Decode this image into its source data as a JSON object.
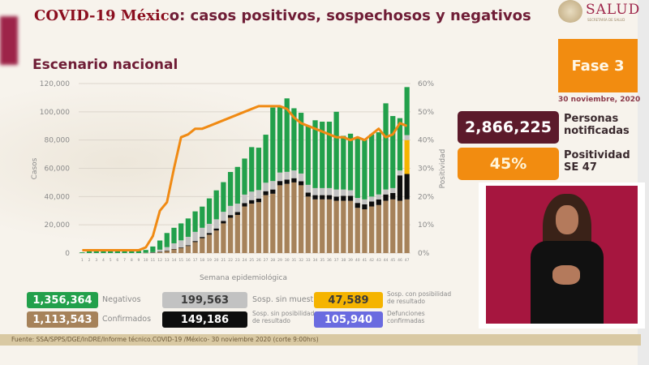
{
  "header": {
    "title_overlay": "COVID-19 Méxic",
    "title_rest": "o: casos positivos, sospechosos y negativos",
    "subtitle": "Escenario nacional",
    "logo_text": "SALUD",
    "logo_subtext": "SECRETARÍA DE SALUD"
  },
  "status": {
    "fase_label": "Fase 3",
    "date": "30 noviembre, 2020",
    "personas_value": "2,866,225",
    "personas_label_1": "Personas",
    "personas_label_2": "notificadas",
    "positividad_value": "45%",
    "positividad_label_1": "Positividad",
    "positividad_label_2": "SE 47"
  },
  "colors": {
    "negativos": "#1ea84b",
    "sin_muestra": "#c4c4c4",
    "con_posibilidad": "#f5b800",
    "confirmados": "#a88258",
    "sin_posibilidad": "#111111",
    "defunciones": "#6a6be0",
    "positividad_line": "#f08a13",
    "brand": "#6f1d36",
    "fase": "#f28c10",
    "personas_box": "#5c1a2b"
  },
  "legend": [
    {
      "value": "1,356,364",
      "label": "Negativos",
      "color": "#22a04b"
    },
    {
      "value": "199,563",
      "label": "Sosp. sin muestra",
      "color": "#c2c2c2"
    },
    {
      "value": "47,589",
      "label": "Sosp. con posibilidad de resultado",
      "color": "#f5b400"
    },
    {
      "value": "1,113,543",
      "label": "Confirmados",
      "color": "#a6825a"
    },
    {
      "value": "149,186",
      "label": "Sosp. sin posibilidad de resultado",
      "color": "#0d0d0d"
    },
    {
      "value": "105,940",
      "label": "Defunciones confirmadas",
      "color": "#6a6be0"
    }
  ],
  "footer": {
    "source": "Fuente: SSA/SPPS/DGE/InDRE/Informe técnico.COVID-19 /México- 30 noviembre 2020 (corte 9:00hrs)"
  },
  "chart_data": {
    "type": "bar",
    "title": "Escenario nacional",
    "xlabel": "Semana epidemiológica",
    "ylabel": "Casos",
    "y2label": "Positividad",
    "ylim": [
      0,
      120000
    ],
    "y2lim": [
      0,
      60
    ],
    "yticks": [
      "0",
      "20,000",
      "40,000",
      "60,000",
      "80,000",
      "100,000",
      "120,000"
    ],
    "y2ticks": [
      "0%",
      "10%",
      "20%",
      "30%",
      "40%",
      "50%",
      "60%"
    ],
    "grid": true,
    "stacked": true,
    "categories": [
      "1",
      "2",
      "3",
      "4",
      "5",
      "6",
      "7",
      "8",
      "9",
      "10",
      "11",
      "12",
      "13",
      "14",
      "15",
      "16",
      "17",
      "18",
      "19",
      "20",
      "21",
      "22",
      "23",
      "24",
      "25",
      "26",
      "27",
      "28",
      "29",
      "30",
      "31",
      "32",
      "33",
      "34",
      "35",
      "36",
      "37",
      "38",
      "39",
      "40",
      "41",
      "42",
      "43",
      "44",
      "45",
      "46",
      "47"
    ],
    "series": [
      {
        "name": "Confirmados",
        "values": [
          0,
          0,
          0,
          0,
          0,
          0,
          0,
          0,
          0,
          100,
          300,
          800,
          1500,
          2600,
          3600,
          5000,
          7800,
          10500,
          13000,
          16000,
          21000,
          25000,
          27000,
          33000,
          35000,
          36000,
          41000,
          42000,
          48000,
          49000,
          50000,
          48000,
          40000,
          38000,
          38000,
          38000,
          37000,
          37000,
          37000,
          32000,
          31000,
          33000,
          34000,
          37000,
          38000,
          37000,
          38000
        ]
      },
      {
        "name": "Sosp. sin posibilidad de resultado",
        "values": [
          0,
          0,
          0,
          0,
          0,
          0,
          0,
          0,
          0,
          0,
          50,
          100,
          200,
          300,
          400,
          500,
          700,
          900,
          1200,
          1400,
          1700,
          1900,
          2000,
          2400,
          2500,
          2600,
          2800,
          3000,
          3000,
          3000,
          3000,
          2800,
          2800,
          3000,
          3000,
          3000,
          3000,
          3500,
          3500,
          3500,
          3500,
          3500,
          4000,
          4500,
          4500,
          18000,
          18000
        ]
      },
      {
        "name": "Sosp. con posibilidad de resultado",
        "values": [
          0,
          0,
          0,
          0,
          0,
          0,
          0,
          0,
          0,
          0,
          0,
          0,
          0,
          0,
          0,
          0,
          0,
          0,
          0,
          0,
          0,
          0,
          0,
          0,
          0,
          0,
          0,
          0,
          0,
          0,
          0,
          0,
          0,
          0,
          0,
          0,
          0,
          0,
          0,
          0,
          0,
          0,
          0,
          0,
          0,
          0,
          24000
        ]
      },
      {
        "name": "Sosp. sin muestra",
        "values": [
          0,
          0,
          0,
          0,
          0,
          0,
          0,
          0,
          0,
          100,
          300,
          1500,
          2500,
          4000,
          5000,
          6000,
          6500,
          6500,
          6500,
          6500,
          6500,
          6500,
          6000,
          6000,
          6000,
          6000,
          6000,
          6000,
          6000,
          5500,
          5500,
          5500,
          5500,
          5000,
          5000,
          5000,
          5000,
          4500,
          4000,
          3500,
          3500,
          3500,
          3500,
          3500,
          3500,
          3500,
          3500
        ]
      },
      {
        "name": "Negativos",
        "values": [
          500,
          1500,
          2000,
          2200,
          2000,
          1800,
          1800,
          1700,
          1500,
          2000,
          4000,
          6500,
          10000,
          11000,
          12000,
          13000,
          14500,
          15000,
          18000,
          20500,
          21000,
          24000,
          26000,
          25500,
          31500,
          30000,
          34000,
          52000,
          47000,
          52000,
          44000,
          43000,
          42000,
          48000,
          47000,
          47000,
          55000,
          38000,
          40000,
          42000,
          42000,
          44000,
          44000,
          61000,
          51000,
          37000,
          34000
        ]
      }
    ],
    "line": {
      "name": "Positividad",
      "axis": "y2",
      "values": [
        1,
        1,
        1,
        1,
        1,
        1,
        1,
        1,
        1,
        2,
        6,
        15,
        18,
        30,
        41,
        42,
        44,
        44,
        45,
        46,
        47,
        48,
        49,
        50,
        51,
        52,
        52,
        52,
        52,
        51,
        48,
        46,
        45,
        44,
        43,
        42,
        41,
        41,
        40,
        41,
        40,
        42,
        44,
        41,
        42,
        46,
        45
      ]
    },
    "legend_position": "bottom"
  }
}
